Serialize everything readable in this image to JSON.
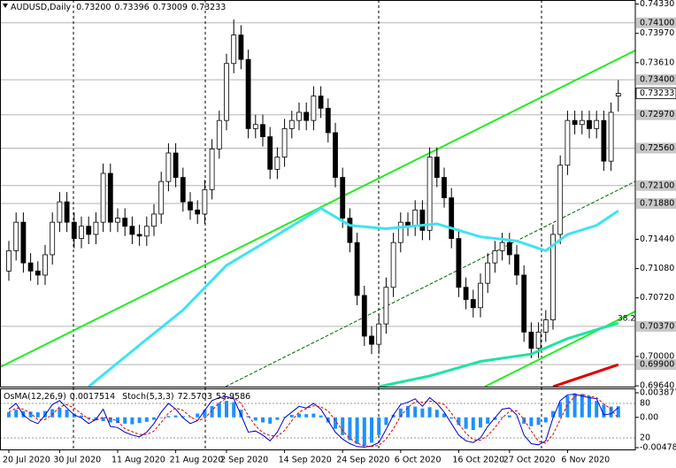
{
  "chart_data": [
    {
      "type": "candlestick",
      "title": "AUDUSD,Daily",
      "ohlc_labels": [
        "0.73200",
        "0.73396",
        "0.73009",
        "0.73233"
      ],
      "categories": [
        "20 Jul 2020",
        null,
        null,
        null,
        null,
        null,
        null,
        "30 Jul 2020",
        null,
        null,
        null,
        null,
        null,
        null,
        null,
        "11 Aug 2020",
        null,
        null,
        null,
        null,
        null,
        null,
        null,
        "21 Aug 2020",
        null,
        null,
        null,
        null,
        null,
        null,
        "2 Sep 2020",
        null,
        null,
        null,
        null,
        null,
        null,
        null,
        "14 Sep 2020",
        null,
        null,
        null,
        null,
        null,
        null,
        null,
        "24 Sep 2020",
        null,
        null,
        null,
        null,
        null,
        null,
        null,
        "6 Oct 2020",
        null,
        null,
        null,
        null,
        null,
        null,
        null,
        "16 Oct 2020",
        null,
        null,
        null,
        null,
        null,
        null,
        "27 Oct 2020",
        null,
        null,
        null,
        null,
        null,
        null,
        null,
        "6 Nov 2020",
        null,
        null,
        null,
        null,
        null,
        null,
        null
      ],
      "open": [
        0.7105,
        0.713,
        0.7165,
        0.7115,
        0.7105,
        0.71,
        0.7125,
        0.7165,
        0.719,
        0.7165,
        0.7145,
        0.716,
        0.715,
        0.7165,
        0.7225,
        0.7165,
        0.717,
        0.716,
        0.715,
        0.7148,
        0.716,
        0.7175,
        0.7215,
        0.725,
        0.722,
        0.719,
        0.718,
        0.7175,
        0.7205,
        0.7255,
        0.729,
        0.736,
        0.7395,
        0.7365,
        0.728,
        0.7285,
        0.727,
        0.723,
        0.7245,
        0.728,
        0.729,
        0.73,
        0.729,
        0.732,
        0.7305,
        0.7275,
        0.722,
        0.717,
        0.714,
        0.7075,
        0.7025,
        0.7015,
        0.704,
        0.7085,
        0.714,
        0.7165,
        0.716,
        0.718,
        0.7155,
        0.7245,
        0.722,
        0.7195,
        0.7145,
        0.7085,
        0.707,
        0.706,
        0.709,
        0.7115,
        0.713,
        0.714,
        0.7125,
        0.71,
        0.703,
        0.701,
        0.703,
        0.7045,
        0.715,
        0.7235,
        0.729,
        0.7285,
        0.729,
        0.728,
        0.729,
        0.724,
        0.732
      ],
      "high": [
        0.7142,
        0.7177,
        0.7177,
        0.7127,
        0.7117,
        0.7137,
        0.7177,
        0.7202,
        0.7202,
        0.7177,
        0.7172,
        0.7172,
        0.7177,
        0.7237,
        0.7237,
        0.7182,
        0.7182,
        0.7172,
        0.7162,
        0.7172,
        0.7187,
        0.7227,
        0.7262,
        0.7262,
        0.7232,
        0.7202,
        0.7192,
        0.7217,
        0.7267,
        0.7302,
        0.7372,
        0.7414,
        0.7407,
        0.7377,
        0.7297,
        0.7297,
        0.7282,
        0.7257,
        0.7292,
        0.7302,
        0.7312,
        0.7312,
        0.7332,
        0.7332,
        0.7317,
        0.7287,
        0.7232,
        0.7182,
        0.7152,
        0.7087,
        0.7037,
        0.7052,
        0.7097,
        0.7152,
        0.7177,
        0.7177,
        0.7192,
        0.7192,
        0.7257,
        0.7257,
        0.7232,
        0.7207,
        0.7157,
        0.7097,
        0.7082,
        0.7102,
        0.7127,
        0.7142,
        0.7152,
        0.7152,
        0.7137,
        0.7112,
        0.7042,
        0.7042,
        0.7057,
        0.7162,
        0.7247,
        0.7302,
        0.7302,
        0.7302,
        0.7302,
        0.7302,
        0.7302,
        0.7312,
        0.73396
      ],
      "low": [
        0.7093,
        0.7118,
        0.7103,
        0.7093,
        0.7088,
        0.7088,
        0.7113,
        0.7153,
        0.7153,
        0.7133,
        0.7133,
        0.7138,
        0.7138,
        0.7153,
        0.7153,
        0.7153,
        0.7148,
        0.7138,
        0.7136,
        0.7136,
        0.7148,
        0.7163,
        0.7203,
        0.7208,
        0.7178,
        0.7168,
        0.7163,
        0.7163,
        0.7193,
        0.7243,
        0.7278,
        0.7348,
        0.7353,
        0.7268,
        0.7268,
        0.7258,
        0.7218,
        0.7218,
        0.7233,
        0.7268,
        0.7278,
        0.7278,
        0.7278,
        0.7293,
        0.7263,
        0.7208,
        0.7158,
        0.7128,
        0.7063,
        0.7013,
        0.7003,
        0.7003,
        0.7028,
        0.7073,
        0.7128,
        0.7148,
        0.7148,
        0.7143,
        0.7143,
        0.7208,
        0.7183,
        0.7133,
        0.7073,
        0.7058,
        0.7048,
        0.7048,
        0.7078,
        0.7103,
        0.7118,
        0.7113,
        0.7088,
        0.7018,
        0.6998,
        0.6998,
        0.7018,
        0.7033,
        0.7138,
        0.7223,
        0.7273,
        0.7273,
        0.7268,
        0.7268,
        0.7228,
        0.7228,
        0.73009
      ],
      "close": [
        0.713,
        0.7165,
        0.7115,
        0.7105,
        0.71,
        0.7125,
        0.7165,
        0.719,
        0.7165,
        0.7145,
        0.716,
        0.715,
        0.7165,
        0.7225,
        0.7165,
        0.717,
        0.716,
        0.715,
        0.7148,
        0.716,
        0.7175,
        0.7215,
        0.725,
        0.722,
        0.719,
        0.718,
        0.7175,
        0.7205,
        0.7255,
        0.729,
        0.736,
        0.7395,
        0.7365,
        0.728,
        0.7285,
        0.727,
        0.723,
        0.7245,
        0.728,
        0.729,
        0.73,
        0.729,
        0.732,
        0.7305,
        0.7275,
        0.722,
        0.717,
        0.714,
        0.7075,
        0.7025,
        0.7015,
        0.704,
        0.7085,
        0.714,
        0.7165,
        0.716,
        0.718,
        0.7155,
        0.7245,
        0.722,
        0.7195,
        0.7145,
        0.7085,
        0.707,
        0.706,
        0.709,
        0.7115,
        0.713,
        0.714,
        0.7125,
        0.71,
        0.703,
        0.701,
        0.703,
        0.7045,
        0.715,
        0.7235,
        0.729,
        0.7285,
        0.729,
        0.728,
        0.729,
        0.724,
        0.73,
        0.73233
      ],
      "up_color": "#ffffff",
      "down_color": "#000000",
      "ylim": [
        0.6963,
        0.7438
      ],
      "yticks": [
        {
          "value": 0.7433,
          "label": "0.74330"
        },
        {
          "value": 0.7397,
          "label": "0.73970"
        },
        {
          "value": 0.7361,
          "label": "0.73610"
        },
        {
          "value": 0.7144,
          "label": "0.71440"
        },
        {
          "value": 0.7108,
          "label": "0.71080"
        },
        {
          "value": 0.7072,
          "label": "0.70720"
        },
        {
          "value": 0.7,
          "label": "0.70000"
        },
        {
          "value": 0.6964,
          "label": "0.69640"
        }
      ],
      "levels": [
        {
          "value": 0.741,
          "label": "0.74100"
        },
        {
          "value": 0.734,
          "label": "0.73400"
        },
        {
          "value": 0.7297,
          "label": "0.72970"
        },
        {
          "value": 0.7256,
          "label": "0.72560"
        },
        {
          "value": 0.721,
          "label": "0.72100"
        },
        {
          "value": 0.7188,
          "label": "0.71880"
        },
        {
          "value": 0.7037,
          "label": "0.70370"
        },
        {
          "value": 0.699,
          "label": "0.69900"
        }
      ],
      "overlays": [
        {
          "color": "#3de3f2",
          "x": [
            11,
            18,
            24,
            30,
            36,
            43,
            47,
            52,
            59,
            65,
            70,
            74,
            77,
            81,
            84
          ],
          "values": [
            0.6963,
            0.7014,
            0.7057,
            0.7112,
            0.7144,
            0.7182,
            0.7161,
            0.7157,
            0.7163,
            0.7147,
            0.7142,
            0.713,
            0.715,
            0.7161,
            0.7179
          ]
        },
        {
          "color": "#1ee3a6",
          "x": [
            51,
            58,
            65,
            72,
            77,
            84
          ],
          "values": [
            0.6963,
            0.6976,
            0.6994,
            0.7003,
            0.7022,
            0.7041
          ]
        },
        {
          "color": "#e00000",
          "x": [
            75,
            84
          ],
          "values": [
            0.6963,
            0.699
          ]
        }
      ],
      "annotation": "38.2"
    },
    {
      "type": "combo",
      "series": [
        {
          "name": "OsMA(12,26,9)",
          "color": "#1e90ff",
          "kind": "bar",
          "values": [
            0.0008,
            0.0012,
            0.001,
            0.0009,
            0.0008,
            0.001,
            0.0013,
            0.0015,
            0.0012,
            0.0006,
            0.0003,
            -0.0002,
            -0.0004,
            -0.0006,
            -0.0008,
            -0.0009,
            -0.001,
            -0.0011,
            -0.0009,
            -0.0007,
            -0.0004,
            -0.0001,
            0.0002,
            0.0003,
            0.0002,
            0.0001,
            0.0006,
            0.0012,
            0.0018,
            0.0023,
            0.0026,
            0.0024,
            0.0012,
            0.0002,
            -0.0005,
            -0.0008,
            -0.001,
            -0.0004,
            0.0001,
            0.0004,
            0.0006,
            0.0005,
            0.0006,
            0.0003,
            -0.0008,
            -0.0018,
            -0.0028,
            -0.0036,
            -0.0042,
            -0.0045,
            -0.004,
            -0.0028,
            -0.0012,
            0.0004,
            0.0014,
            0.0018,
            0.0017,
            0.0014,
            0.0016,
            0.0012,
            0.0006,
            -0.0002,
            -0.0012,
            -0.0018,
            -0.002,
            -0.0016,
            -0.001,
            -0.0004,
            0.0001,
            0.0003,
            0,
            -0.001,
            -0.0014,
            -0.0012,
            -0.0008,
            0.001,
            0.0024,
            0.0034,
            0.0038,
            0.0037,
            0.0033,
            0.0026,
            0.002,
            0.0017,
            0.0017514
          ]
        },
        {
          "name": "Stoch(5,3,3)",
          "color": "#0000c8",
          "kind": "line",
          "style": "solid",
          "axis": "y2",
          "values": [
            70,
            80,
            60,
            50,
            45,
            60,
            78,
            85,
            72,
            60,
            55,
            45,
            52,
            70,
            40,
            38,
            30,
            25,
            22,
            30,
            45,
            65,
            80,
            70,
            55,
            45,
            50,
            68,
            85,
            90,
            92,
            88,
            60,
            30,
            32,
            25,
            15,
            30,
            55,
            65,
            75,
            72,
            80,
            70,
            50,
            30,
            18,
            10,
            5,
            4,
            6,
            12,
            35,
            60,
            78,
            82,
            88,
            75,
            90,
            80,
            65,
            45,
            25,
            15,
            12,
            20,
            40,
            55,
            70,
            72,
            60,
            25,
            10,
            8,
            15,
            55,
            85,
            95,
            96,
            93,
            90,
            88,
            60,
            62,
            72.5703
          ]
        },
        {
          "color": "#e00000",
          "kind": "line",
          "style": "dashed",
          "axis": "y2",
          "values": [
            65,
            72,
            70,
            63,
            52,
            52,
            61,
            74,
            78,
            72,
            62,
            53,
            51,
            56,
            54,
            49,
            36,
            31,
            26,
            26,
            32,
            47,
            63,
            72,
            68,
            57,
            50,
            54,
            68,
            81,
            89,
            90,
            80,
            59,
            41,
            29,
            24,
            23,
            33,
            50,
            65,
            71,
            76,
            74,
            67,
            50,
            33,
            19,
            11,
            6,
            5,
            7,
            18,
            36,
            58,
            73,
            83,
            82,
            84,
            82,
            78,
            63,
            45,
            28,
            17,
            16,
            24,
            38,
            55,
            66,
            67,
            52,
            32,
            14,
            11,
            26,
            52,
            78,
            92,
            95,
            93,
            90,
            79,
            70,
            53.9586
          ]
        }
      ],
      "ylim": [
        -0.004782,
        0.0038774
      ],
      "yticks": [
        0.0038774,
        {
          "value": 0,
          "label": "0.00"
        },
        -0.004782
      ],
      "y2lim": [
        0,
        100
      ],
      "y2ticks": [
        80,
        20
      ]
    }
  ]
}
